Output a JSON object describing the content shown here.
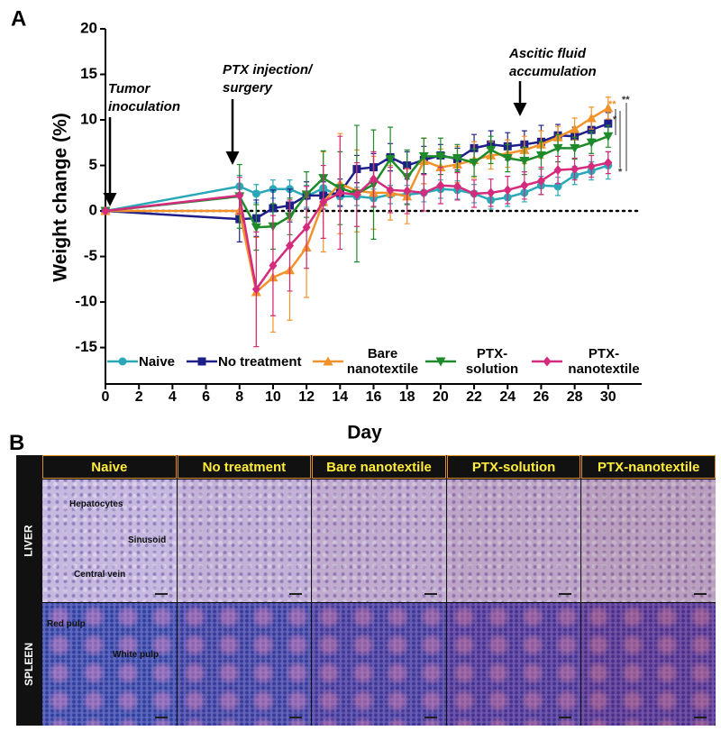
{
  "chart_data": {
    "type": "line",
    "panel_label": "A",
    "x_label": "Day",
    "y_label": "Weight change (%)",
    "x": [
      0,
      8,
      9,
      10,
      11,
      12,
      13,
      14,
      15,
      16,
      17,
      18,
      19,
      20,
      21,
      22,
      23,
      24,
      25,
      26,
      27,
      28,
      29,
      30
    ],
    "xlim": [
      0,
      32
    ],
    "xticks": [
      0,
      2,
      4,
      6,
      8,
      10,
      12,
      14,
      16,
      18,
      20,
      22,
      24,
      26,
      28,
      30
    ],
    "ylim": [
      -19,
      20
    ],
    "yticks": [
      -15,
      -10,
      -5,
      0,
      5,
      10,
      15,
      20
    ],
    "series": [
      {
        "name": "Naive",
        "color": "#2aa8b8",
        "marker": "circle",
        "values": [
          0,
          2.7,
          1.9,
          2.4,
          2.4,
          1.6,
          2.5,
          1.6,
          1.6,
          1.4,
          1.8,
          1.8,
          2.0,
          2.4,
          2.3,
          1.9,
          1.2,
          1.5,
          2.0,
          2.8,
          2.7,
          3.9,
          4.4,
          5.0
        ],
        "errors": [
          0,
          1.2,
          1.0,
          1.0,
          1.0,
          1.2,
          1.0,
          1.0,
          1.0,
          1.0,
          1.0,
          1.0,
          1.0,
          1.0,
          1.0,
          1.0,
          1.0,
          1.0,
          1.0,
          1.0,
          1.0,
          1.0,
          1.0,
          1.5
        ]
      },
      {
        "name": "No treatment",
        "color": "#1f1f8a",
        "marker": "square",
        "values": [
          0,
          -0.9,
          -0.8,
          0.3,
          0.6,
          1.7,
          1.7,
          2.0,
          4.6,
          4.8,
          5.9,
          5.0,
          5.6,
          6.1,
          5.7,
          6.9,
          7.3,
          7.1,
          7.3,
          7.6,
          8.3,
          8.2,
          8.9,
          9.6
        ],
        "errors": [
          0,
          2.5,
          2.0,
          2.0,
          1.8,
          1.5,
          1.5,
          1.5,
          1.5,
          1.5,
          1.5,
          1.5,
          1.5,
          1.2,
          1.2,
          1.5,
          1.5,
          1.5,
          1.5,
          1.8,
          1.2,
          1.0,
          1.0,
          1.2
        ]
      },
      {
        "name": "Bare nanotextile",
        "color": "#f2922a",
        "marker": "triangle-up",
        "values": [
          0,
          0,
          -8.9,
          -7.3,
          -6.5,
          -4.0,
          1.0,
          3.0,
          2.2,
          2.0,
          2.0,
          1.6,
          5.5,
          4.8,
          5.1,
          5.6,
          6.1,
          6.3,
          6.7,
          7.3,
          8.1,
          9.0,
          10.2,
          11.3
        ],
        "errors": [
          0,
          0,
          6.0,
          6.0,
          5.5,
          5.5,
          5.5,
          5.5,
          4.5,
          4.0,
          3.0,
          3.0,
          2.5,
          2.0,
          2.0,
          2.0,
          1.5,
          1.5,
          1.5,
          1.5,
          1.2,
          1.2,
          1.2,
          1.2
        ]
      },
      {
        "name": "PTX-solution",
        "color": "#1f8a2a",
        "marker": "triangle-down",
        "values": [
          0,
          1.6,
          -1.8,
          -1.7,
          -0.6,
          1.8,
          3.6,
          2.5,
          1.9,
          2.9,
          5.7,
          3.7,
          6.0,
          6.0,
          5.8,
          5.3,
          6.7,
          5.8,
          5.5,
          6.1,
          6.9,
          6.9,
          7.5,
          8.2
        ],
        "errors": [
          0,
          3.5,
          2.5,
          2.5,
          2.0,
          2.5,
          3.0,
          4.0,
          7.5,
          6.0,
          3.5,
          3.0,
          2.0,
          2.0,
          1.5,
          1.5,
          1.5,
          1.5,
          1.5,
          1.5,
          1.5,
          1.2,
          1.2,
          1.2
        ]
      },
      {
        "name": "PTX-nanotextile",
        "color": "#d42b7c",
        "marker": "diamond",
        "values": [
          0,
          1.7,
          -8.6,
          -6.0,
          -3.8,
          -1.8,
          1.0,
          2.0,
          1.8,
          3.5,
          2.3,
          2.2,
          2.0,
          2.8,
          2.7,
          1.9,
          2.0,
          2.3,
          2.8,
          3.3,
          4.5,
          4.6,
          4.9,
          5.3
        ],
        "errors": [
          0,
          2.0,
          6.3,
          5.5,
          5.0,
          4.5,
          4.0,
          6.2,
          3.5,
          3.0,
          2.5,
          2.5,
          2.0,
          2.0,
          1.5,
          1.5,
          1.5,
          1.5,
          1.5,
          1.5,
          1.5,
          1.2,
          1.2,
          1.2
        ]
      }
    ],
    "annotations": [
      {
        "lines": [
          "Tumor",
          "inoculation"
        ]
      },
      {
        "lines": [
          "PTX injection/",
          "surgery"
        ]
      },
      {
        "lines": [
          "Ascitic fluid",
          "accumulation"
        ]
      }
    ],
    "significance": [
      "**",
      "*",
      "**",
      "*"
    ]
  },
  "panel_b": {
    "label": "B",
    "columns": [
      "Naive",
      "No treatment",
      "Bare nanotextile",
      "PTX-solution",
      "PTX-nanotextile"
    ],
    "rows": [
      {
        "label": "LIVER",
        "annotations": [
          "Hepatocytes",
          "Sinusoid",
          "Central vein"
        ]
      },
      {
        "label": "SPLEEN",
        "annotations": [
          "Red pulp",
          "White pulp"
        ]
      }
    ]
  }
}
